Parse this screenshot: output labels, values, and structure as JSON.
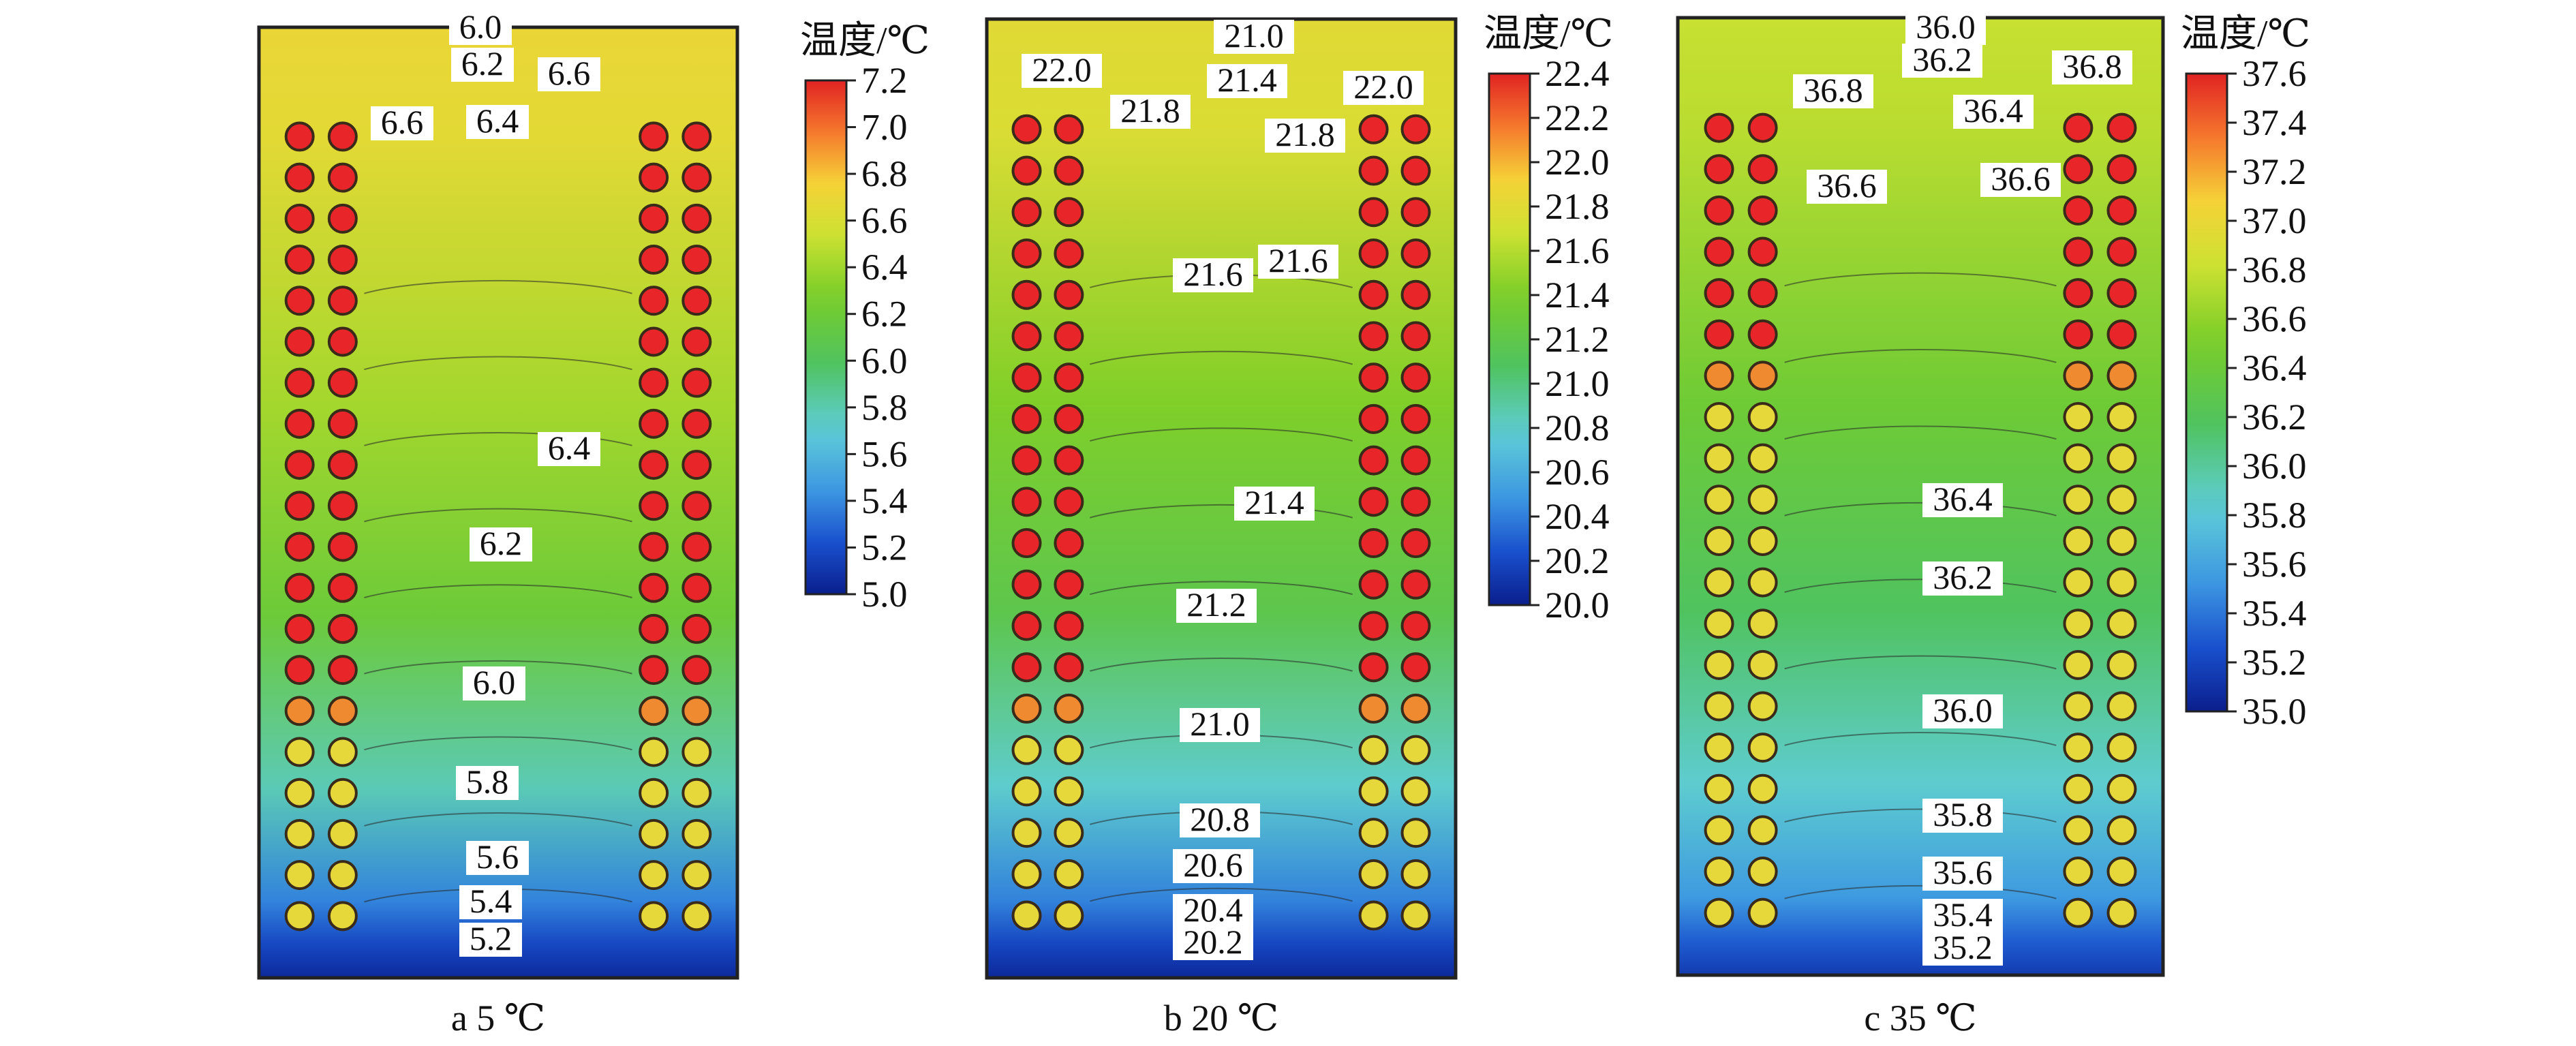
{
  "figure": {
    "panels": [
      {
        "caption": "a  5 ℃"
      },
      {
        "caption": "b  20 ℃"
      },
      {
        "caption": "c  35 ℃"
      }
    ]
  },
  "chart_data": [
    {
      "type": "heatmap",
      "title": "",
      "caption": "a  5 ℃",
      "colorbar": {
        "title": "温度/℃",
        "min": 5.0,
        "max": 7.2,
        "ticks": [
          "7.2",
          "7.0",
          "6.8",
          "6.6",
          "6.4",
          "6.2",
          "6.0",
          "5.8",
          "5.6",
          "5.4",
          "5.2",
          "5.0"
        ]
      },
      "contour_labels": [
        "6.0",
        "6.2",
        "6.4",
        "6.6",
        "6.6",
        "6.4",
        "6.2",
        "6.0",
        "5.8",
        "5.6",
        "5.4",
        "5.2"
      ],
      "top_temp": 6.7,
      "mid_temp": 6.3,
      "bottom_temp": 5.05,
      "cells_per_column": 20,
      "hot_cells": 14
    },
    {
      "type": "heatmap",
      "title": "",
      "caption": "b  20 ℃",
      "colorbar": {
        "title": "温度/℃",
        "min": 20.0,
        "max": 22.4,
        "ticks": [
          "22.4",
          "22.2",
          "22.0",
          "21.8",
          "21.6",
          "21.4",
          "21.2",
          "21.0",
          "20.8",
          "20.6",
          "20.4",
          "20.2",
          "20.0"
        ]
      },
      "contour_labels": [
        "21.0",
        "22.0",
        "21.8",
        "21.4",
        "22.0",
        "21.8",
        "21.6",
        "21.6",
        "21.4",
        "21.2",
        "21.0",
        "20.8",
        "20.6",
        "20.4",
        "20.2"
      ],
      "top_temp": 21.8,
      "mid_temp": 21.3,
      "bottom_temp": 20.05,
      "cells_per_column": 20,
      "hot_cells": 14
    },
    {
      "type": "heatmap",
      "title": "",
      "caption": "c  35 ℃",
      "colorbar": {
        "title": "温度/℃",
        "min": 35.0,
        "max": 37.6,
        "ticks": [
          "37.6",
          "37.4",
          "37.2",
          "37.0",
          "36.8",
          "36.6",
          "36.4",
          "36.2",
          "36.0",
          "35.8",
          "35.6",
          "35.4",
          "35.2",
          "35.0"
        ]
      },
      "contour_labels": [
        "36.0",
        "36.2",
        "36.8",
        "36.4",
        "36.8",
        "36.6",
        "36.6",
        "36.4",
        "36.2",
        "36.0",
        "35.8",
        "35.6",
        "35.4",
        "35.2"
      ],
      "top_temp": 36.8,
      "mid_temp": 36.3,
      "bottom_temp": 35.15,
      "cells_per_column": 20,
      "hot_cells": 6
    }
  ]
}
